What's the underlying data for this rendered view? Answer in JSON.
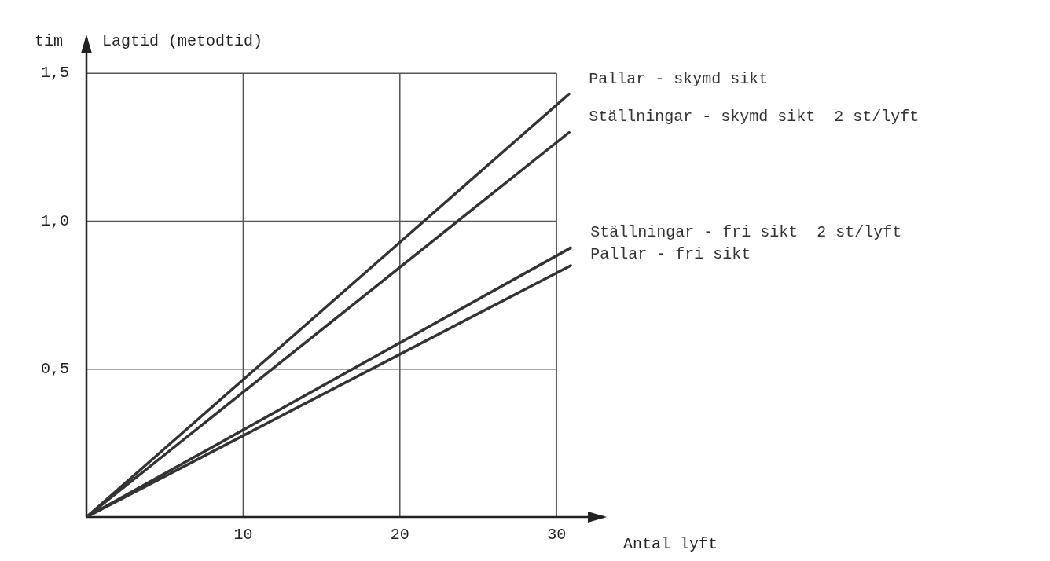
{
  "chart_data": {
    "type": "line",
    "title": "Lagtid (metodtid)",
    "ylabel": "tim",
    "xlabel": "Antal lyft",
    "xlim": [
      0,
      33
    ],
    "ylim": [
      0,
      1.62
    ],
    "xticks": [
      10,
      20,
      30
    ],
    "yticks": [
      {
        "value": 0.5,
        "label": "0,5"
      },
      {
        "value": 1.0,
        "label": "1,0"
      },
      {
        "value": 1.5,
        "label": "1,5"
      }
    ],
    "grid": true,
    "legend": false,
    "series": [
      {
        "name": "Pallar - skymd sikt",
        "color": "#333333",
        "x": [
          0,
          30.8
        ],
        "values": [
          0,
          1.43
        ]
      },
      {
        "name": "Ställningar - skymd sikt  2 st/lyft",
        "color": "#333333",
        "x": [
          0,
          30.8
        ],
        "values": [
          0,
          1.3
        ]
      },
      {
        "name": "Ställningar - fri sikt  2 st/lyft",
        "color": "#333333",
        "x": [
          0,
          30.9
        ],
        "values": [
          0,
          0.91
        ]
      },
      {
        "name": "Pallar - fri sikt",
        "color": "#333333",
        "x": [
          0,
          30.9
        ],
        "values": [
          0,
          0.85
        ]
      }
    ]
  }
}
